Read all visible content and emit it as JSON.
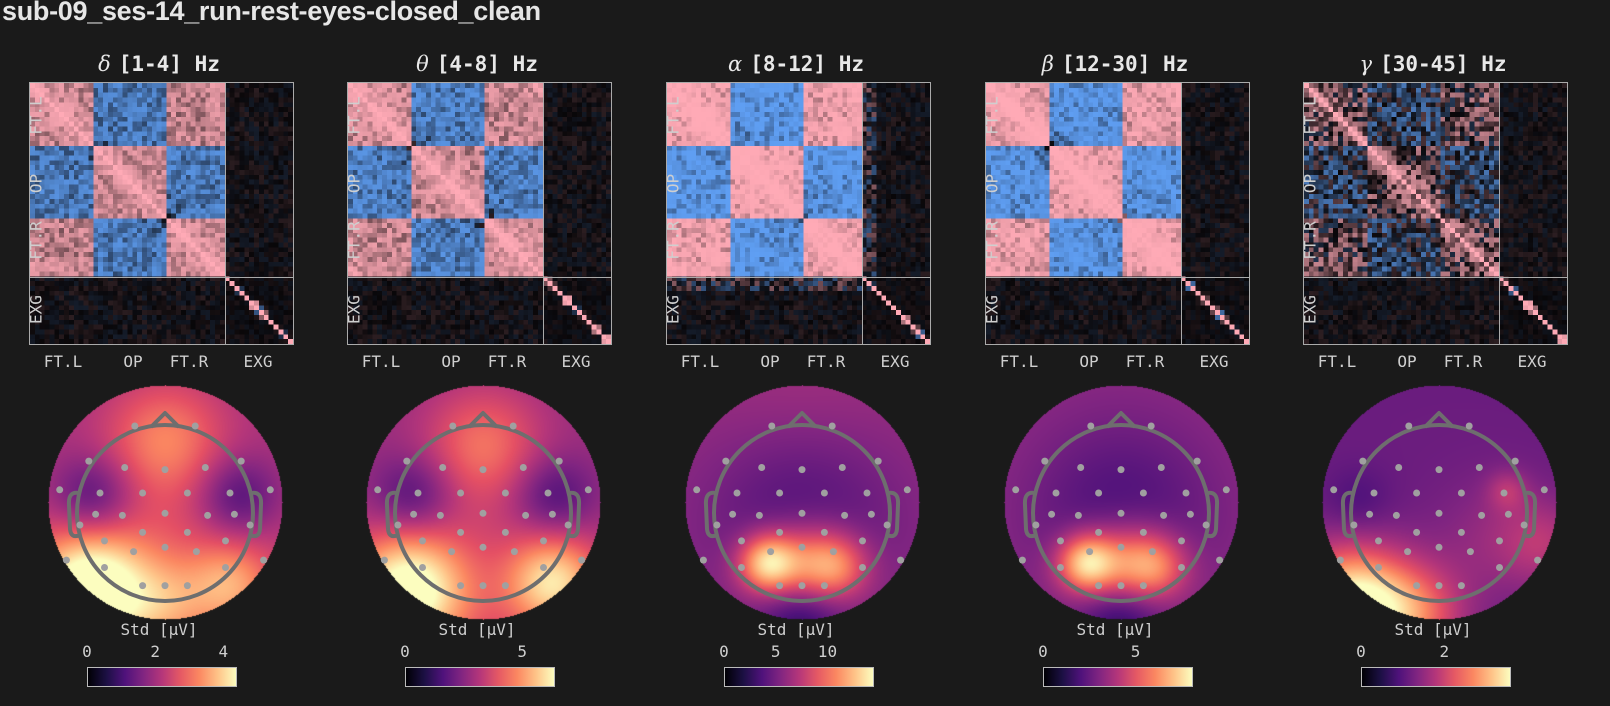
{
  "title": "sub-09_ses-14_run-rest-eyes-closed_clean",
  "axis_labels": {
    "rows": [
      "FT.L",
      "OP",
      "FT.R",
      "EXG"
    ],
    "cols": [
      "FT.L",
      "OP",
      "FT.R",
      "EXG"
    ]
  },
  "colorbar_label": "Std [μV]",
  "colors": {
    "background": "#1a1a1a",
    "positive": "#ffa3b0",
    "negative": "#5aa0f5",
    "head_outline": "#6e6e6e",
    "electrode": "#a0a0a0"
  },
  "panels": [
    {
      "greek": "δ",
      "band": "[1-4] Hz",
      "cb_ticks": [
        "0",
        "2",
        "4"
      ],
      "cb_max": 4.4
    },
    {
      "greek": "θ",
      "band": "[4-8] Hz",
      "cb_ticks": [
        "0",
        "5"
      ],
      "cb_max": 6.4
    },
    {
      "greek": "α",
      "band": "[8-12] Hz",
      "cb_ticks": [
        "0",
        "5",
        "10"
      ],
      "cb_max": 14.5
    },
    {
      "greek": "β",
      "band": "[12-30] Hz",
      "cb_ticks": [
        "0",
        "5"
      ],
      "cb_max": 8.1
    },
    {
      "greek": "γ",
      "band": "[30-45] Hz",
      "cb_ticks": [
        "0",
        "2"
      ],
      "cb_max": 3.6
    }
  ],
  "chart_data": [
    {
      "type": "heatmap",
      "title": "δ [1-4] Hz",
      "description": "Channel correlation matrix, 40 EEG channels (FT.L, OP, FT.R groups) + EXG channels; diverging pink(+)/blue(-) colormap",
      "row_groups": [
        "FT.L",
        "OP",
        "FT.R",
        "EXG"
      ],
      "col_groups": [
        "FT.L",
        "OP",
        "FT.R",
        "EXG"
      ],
      "n_eeg": 40,
      "n_exg": 14
    },
    {
      "type": "heatmap",
      "title": "θ [4-8] Hz",
      "row_groups": [
        "FT.L",
        "OP",
        "FT.R",
        "EXG"
      ],
      "col_groups": [
        "FT.L",
        "OP",
        "FT.R",
        "EXG"
      ],
      "n_eeg": 40,
      "n_exg": 14
    },
    {
      "type": "heatmap",
      "title": "α [8-12] Hz",
      "row_groups": [
        "FT.L",
        "OP",
        "FT.R",
        "EXG"
      ],
      "col_groups": [
        "FT.L",
        "OP",
        "FT.R",
        "EXG"
      ],
      "n_eeg": 40,
      "n_exg": 14
    },
    {
      "type": "heatmap",
      "title": "β [12-30] Hz",
      "row_groups": [
        "FT.L",
        "OP",
        "FT.R",
        "EXG"
      ],
      "col_groups": [
        "FT.L",
        "OP",
        "FT.R",
        "EXG"
      ],
      "n_eeg": 40,
      "n_exg": 14
    },
    {
      "type": "heatmap",
      "title": "γ [30-45] Hz",
      "row_groups": [
        "FT.L",
        "OP",
        "FT.R",
        "EXG"
      ],
      "col_groups": [
        "FT.L",
        "OP",
        "FT.R",
        "EXG"
      ],
      "n_eeg": 40,
      "n_exg": 14
    },
    {
      "type": "heatmap",
      "title": "δ topomap",
      "colorbar": {
        "label": "Std [μV]",
        "ticks": [
          0,
          2,
          4
        ],
        "range": [
          0,
          4.4
        ]
      },
      "hotspots": [
        "posterior-left (max)",
        "posterior-right",
        "frontal-central"
      ]
    },
    {
      "type": "heatmap",
      "title": "θ topomap",
      "colorbar": {
        "label": "Std [μV]",
        "ticks": [
          0,
          5
        ],
        "range": [
          0,
          6.4
        ]
      },
      "hotspots": [
        "posterior-left (max)",
        "posterior-right",
        "frontal-central"
      ]
    },
    {
      "type": "heatmap",
      "title": "α topomap",
      "colorbar": {
        "label": "Std [μV]",
        "ticks": [
          0,
          5,
          10
        ],
        "range": [
          0,
          14.5
        ]
      },
      "hotspots": [
        "parieto-occipital (max, left of midline)"
      ]
    },
    {
      "type": "heatmap",
      "title": "β topomap",
      "colorbar": {
        "label": "Std [μV]",
        "ticks": [
          0,
          5
        ],
        "range": [
          0,
          8.1
        ]
      },
      "hotspots": [
        "parieto-occipital (max, left of midline)"
      ]
    },
    {
      "type": "heatmap",
      "title": "γ topomap",
      "colorbar": {
        "label": "Std [μV]",
        "ticks": [
          0,
          2
        ],
        "range": [
          0,
          3.6
        ]
      },
      "hotspots": [
        "occipital-left edge (max)",
        "right temporal (local)"
      ]
    }
  ]
}
